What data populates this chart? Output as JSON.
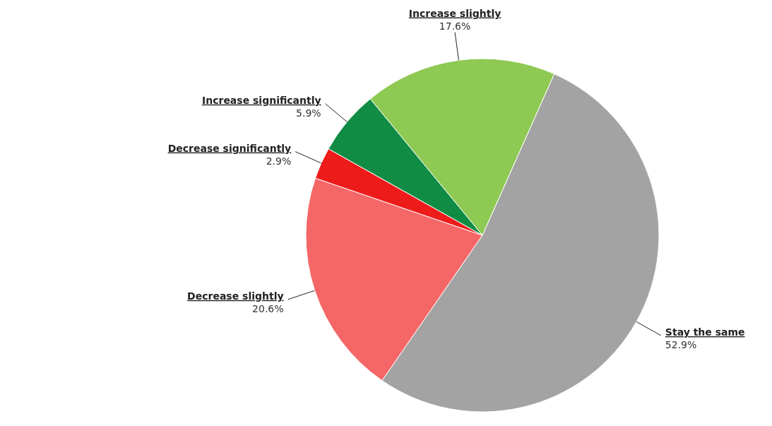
{
  "chart_data": {
    "type": "pie",
    "categories": [
      "Stay the same",
      "Decrease slightly",
      "Decrease significantly",
      "Increase significantly",
      "Increase slightly"
    ],
    "values": [
      52.9,
      20.6,
      2.9,
      5.9,
      17.6
    ],
    "value_labels": [
      "52.9%",
      "20.6%",
      "2.9%",
      "5.9%",
      "17.6%"
    ],
    "colors": [
      "#a3a3a3",
      "#f56767",
      "#ee1b1b",
      "#108c45",
      "#8dc953"
    ]
  }
}
